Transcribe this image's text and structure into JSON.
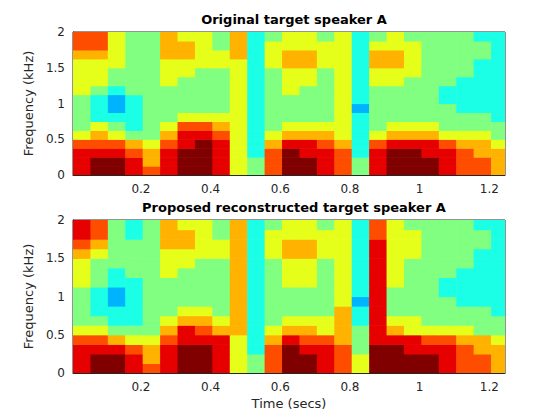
{
  "chart_data": [
    {
      "type": "heatmap",
      "title": "Original target speaker A",
      "ylabel": "Frequency (kHz)",
      "x": [
        0.03,
        0.08,
        0.13,
        0.18,
        0.23,
        0.28,
        0.33,
        0.38,
        0.43,
        0.48,
        0.53,
        0.58,
        0.63,
        0.68,
        0.73,
        0.78,
        0.83,
        0.88,
        0.93,
        0.98,
        1.03,
        1.08,
        1.13,
        1.18,
        1.23
      ],
      "y": [
        0.0625,
        0.1875,
        0.3125,
        0.4375,
        0.5625,
        0.6875,
        0.8125,
        0.9375,
        1.0625,
        1.1875,
        1.3125,
        1.4375,
        1.5625,
        1.6875,
        1.8125,
        1.9375
      ],
      "cells": [
        [
          9,
          10,
          10,
          9,
          8,
          9,
          10,
          10,
          9,
          6,
          5,
          8,
          10,
          10,
          9,
          8,
          5,
          9,
          10,
          10,
          10,
          9,
          8,
          8,
          7
        ],
        [
          9,
          10,
          10,
          9,
          7,
          9,
          10,
          10,
          9,
          6,
          5,
          8,
          10,
          10,
          9,
          8,
          5,
          9,
          10,
          10,
          10,
          9,
          8,
          8,
          7
        ],
        [
          9,
          9,
          9,
          8,
          7,
          9,
          10,
          10,
          9,
          6,
          4,
          8,
          10,
          9,
          9,
          8,
          4,
          9,
          10,
          10,
          9,
          9,
          8,
          7,
          7
        ],
        [
          8,
          8,
          8,
          7,
          6,
          8,
          9,
          10,
          9,
          6,
          4,
          7,
          9,
          9,
          8,
          7,
          4,
          8,
          9,
          9,
          9,
          8,
          7,
          7,
          6
        ],
        [
          6,
          7,
          6,
          5,
          5,
          7,
          9,
          9,
          8,
          6,
          4,
          6,
          7,
          7,
          7,
          6,
          4,
          6,
          7,
          7,
          7,
          6,
          6,
          6,
          5
        ],
        [
          5,
          6,
          5,
          4,
          5,
          6,
          8,
          8,
          7,
          6,
          4,
          5,
          6,
          6,
          6,
          6,
          4,
          5,
          6,
          6,
          6,
          5,
          5,
          5,
          5
        ],
        [
          5,
          4,
          4,
          4,
          5,
          5,
          6,
          6,
          6,
          6,
          4,
          5,
          5,
          5,
          5,
          6,
          4,
          5,
          5,
          5,
          5,
          5,
          5,
          5,
          4
        ],
        [
          5,
          4,
          3,
          4,
          5,
          5,
          5,
          5,
          5,
          6,
          4,
          5,
          5,
          5,
          5,
          6,
          3,
          5,
          5,
          5,
          5,
          5,
          4,
          4,
          4
        ],
        [
          5,
          4,
          3,
          4,
          5,
          5,
          5,
          5,
          5,
          6,
          4,
          5,
          5,
          5,
          5,
          6,
          4,
          5,
          5,
          5,
          5,
          4,
          4,
          4,
          4
        ],
        [
          6,
          5,
          4,
          5,
          5,
          5,
          5,
          5,
          5,
          6,
          4,
          5,
          6,
          5,
          5,
          6,
          4,
          5,
          5,
          5,
          5,
          4,
          4,
          4,
          4
        ],
        [
          6,
          6,
          5,
          5,
          5,
          6,
          5,
          5,
          5,
          6,
          4,
          5,
          6,
          6,
          5,
          6,
          4,
          6,
          6,
          5,
          5,
          5,
          4,
          4,
          4
        ],
        [
          6,
          6,
          5,
          5,
          5,
          6,
          6,
          5,
          5,
          6,
          4,
          5,
          6,
          6,
          5,
          6,
          4,
          6,
          6,
          6,
          5,
          5,
          5,
          4,
          4
        ],
        [
          6,
          6,
          6,
          5,
          5,
          6,
          6,
          6,
          6,
          6,
          4,
          6,
          7,
          7,
          6,
          6,
          4,
          7,
          7,
          6,
          5,
          5,
          5,
          4,
          4
        ],
        [
          7,
          7,
          6,
          5,
          5,
          7,
          7,
          6,
          6,
          7,
          4,
          6,
          7,
          7,
          6,
          6,
          4,
          7,
          7,
          6,
          5,
          5,
          5,
          5,
          4
        ],
        [
          8,
          8,
          6,
          5,
          5,
          7,
          7,
          6,
          5,
          7,
          4,
          6,
          6,
          6,
          6,
          6,
          4,
          6,
          6,
          6,
          5,
          5,
          5,
          5,
          4
        ],
        [
          8,
          8,
          6,
          5,
          5,
          7,
          6,
          6,
          5,
          7,
          4,
          5,
          6,
          6,
          5,
          6,
          4,
          5,
          6,
          5,
          5,
          5,
          5,
          4,
          4
        ]
      ],
      "clim": [
        0,
        10
      ],
      "xlim": [
        0.005,
        1.245
      ],
      "xticks": [
        0.2,
        0.4,
        0.6,
        0.8,
        1,
        1.2
      ],
      "ylim": [
        0,
        2
      ],
      "yticks": [
        0,
        0.5,
        1,
        1.5,
        2
      ]
    },
    {
      "type": "heatmap",
      "title": "Proposed reconstructed target speaker A",
      "ylabel": "Frequency (kHz)",
      "xlabel": "Time (secs)",
      "x": [
        0.03,
        0.08,
        0.13,
        0.18,
        0.23,
        0.28,
        0.33,
        0.38,
        0.43,
        0.48,
        0.53,
        0.58,
        0.63,
        0.68,
        0.73,
        0.78,
        0.83,
        0.88,
        0.93,
        0.98,
        1.03,
        1.08,
        1.13,
        1.18,
        1.23
      ],
      "y": [
        0.0625,
        0.1875,
        0.3125,
        0.4375,
        0.5625,
        0.6875,
        0.8125,
        0.9375,
        1.0625,
        1.1875,
        1.3125,
        1.4375,
        1.5625,
        1.6875,
        1.8125,
        1.9375
      ],
      "cells": [
        [
          9,
          10,
          10,
          9,
          8,
          9,
          10,
          10,
          9,
          6,
          5,
          8,
          10,
          10,
          9,
          8,
          6,
          10,
          10,
          10,
          10,
          9,
          8,
          8,
          7
        ],
        [
          9,
          10,
          10,
          9,
          7,
          9,
          10,
          10,
          9,
          6,
          5,
          8,
          10,
          10,
          9,
          8,
          6,
          10,
          10,
          10,
          10,
          9,
          8,
          8,
          7
        ],
        [
          9,
          9,
          9,
          8,
          7,
          9,
          10,
          10,
          9,
          6,
          4,
          8,
          10,
          9,
          9,
          8,
          5,
          10,
          10,
          9,
          9,
          9,
          8,
          7,
          7
        ],
        [
          8,
          8,
          7,
          6,
          6,
          8,
          9,
          9,
          9,
          6,
          4,
          7,
          9,
          8,
          8,
          7,
          5,
          9,
          9,
          9,
          8,
          8,
          7,
          7,
          6
        ],
        [
          6,
          6,
          5,
          5,
          5,
          7,
          9,
          8,
          7,
          7,
          4,
          6,
          7,
          7,
          6,
          7,
          5,
          9,
          7,
          6,
          6,
          6,
          6,
          5,
          5
        ],
        [
          5,
          5,
          4,
          4,
          5,
          6,
          7,
          7,
          6,
          7,
          4,
          5,
          6,
          6,
          6,
          7,
          4,
          9,
          6,
          6,
          5,
          5,
          5,
          5,
          5
        ],
        [
          5,
          4,
          4,
          4,
          5,
          5,
          6,
          6,
          5,
          7,
          4,
          5,
          5,
          5,
          5,
          7,
          4,
          9,
          5,
          5,
          5,
          5,
          5,
          5,
          4
        ],
        [
          5,
          4,
          3,
          4,
          5,
          5,
          5,
          5,
          5,
          7,
          4,
          5,
          5,
          5,
          5,
          6,
          3,
          9,
          5,
          5,
          5,
          5,
          4,
          4,
          4
        ],
        [
          5,
          4,
          3,
          4,
          5,
          5,
          5,
          5,
          5,
          7,
          4,
          5,
          5,
          5,
          5,
          6,
          4,
          9,
          5,
          5,
          5,
          4,
          4,
          4,
          4
        ],
        [
          6,
          5,
          4,
          4,
          5,
          5,
          5,
          5,
          5,
          7,
          4,
          5,
          6,
          6,
          5,
          6,
          4,
          9,
          6,
          5,
          5,
          4,
          4,
          4,
          4
        ],
        [
          6,
          5,
          4,
          5,
          5,
          6,
          5,
          5,
          5,
          7,
          4,
          5,
          6,
          6,
          5,
          6,
          4,
          9,
          6,
          5,
          5,
          5,
          4,
          4,
          4
        ],
        [
          6,
          5,
          5,
          5,
          5,
          6,
          6,
          5,
          5,
          7,
          4,
          5,
          6,
          6,
          5,
          6,
          4,
          9,
          6,
          5,
          5,
          5,
          5,
          4,
          4
        ],
        [
          7,
          6,
          5,
          5,
          5,
          6,
          6,
          6,
          6,
          7,
          4,
          6,
          7,
          7,
          6,
          6,
          4,
          9,
          6,
          6,
          5,
          5,
          5,
          4,
          4
        ],
        [
          8,
          7,
          5,
          5,
          5,
          7,
          7,
          6,
          6,
          7,
          4,
          6,
          7,
          7,
          6,
          6,
          4,
          9,
          6,
          6,
          5,
          5,
          5,
          5,
          4
        ],
        [
          9,
          8,
          5,
          4,
          5,
          7,
          7,
          6,
          5,
          7,
          4,
          6,
          6,
          6,
          6,
          6,
          4,
          8,
          6,
          6,
          5,
          5,
          5,
          5,
          4
        ],
        [
          9,
          8,
          5,
          4,
          5,
          7,
          6,
          6,
          5,
          7,
          4,
          5,
          6,
          6,
          5,
          6,
          4,
          8,
          6,
          5,
          5,
          5,
          5,
          4,
          4
        ]
      ],
      "clim": [
        0,
        10
      ],
      "xlim": [
        0.005,
        1.245
      ],
      "xticks": [
        0.2,
        0.4,
        0.6,
        0.8,
        1,
        1.2
      ],
      "ylim": [
        0,
        2
      ],
      "yticks": [
        0,
        0.5,
        1,
        1.5,
        2
      ]
    }
  ]
}
